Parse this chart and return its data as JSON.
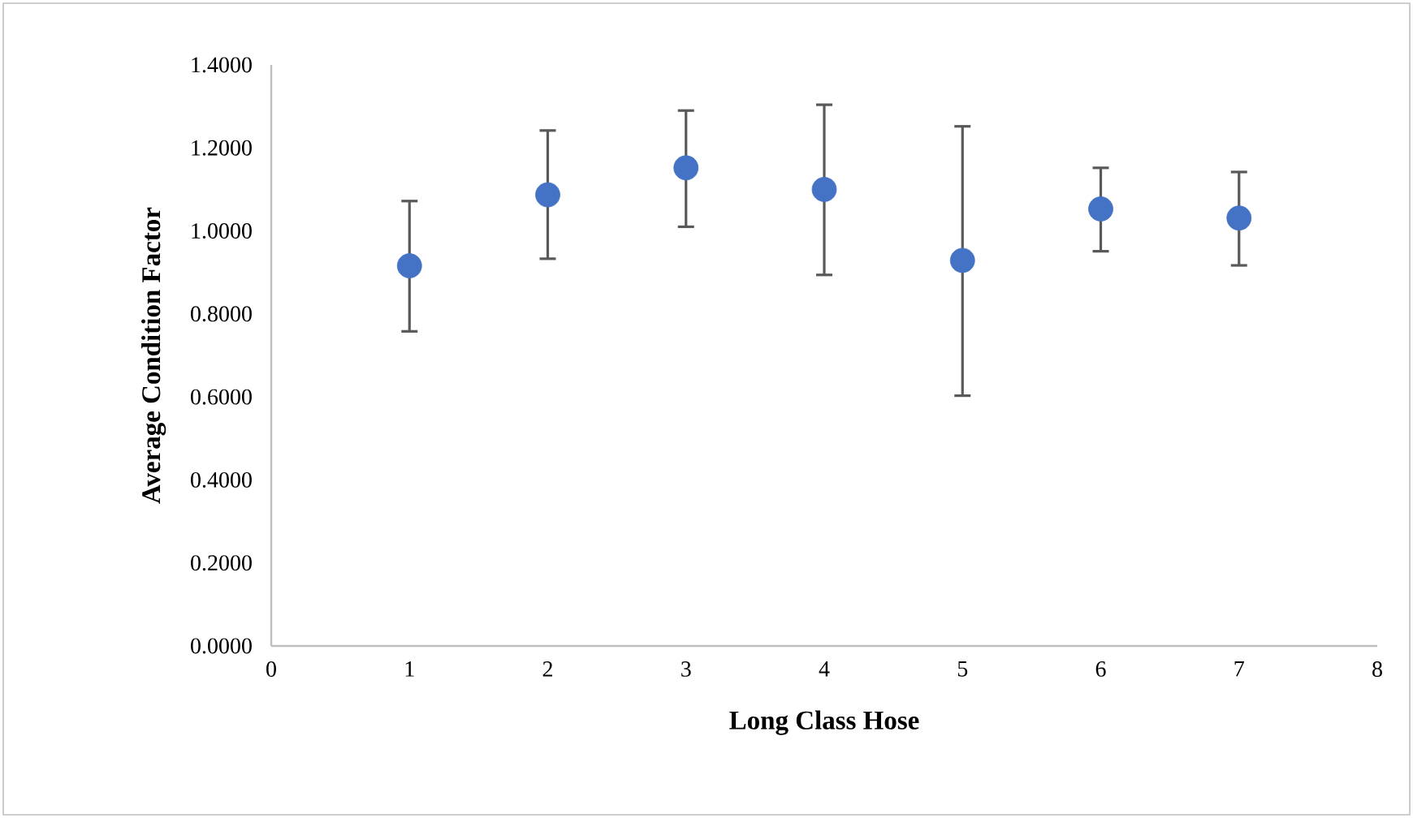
{
  "chart_data": {
    "type": "scatter",
    "xlabel": "Long Class Hose",
    "ylabel": "Average Condition Factor",
    "x": [
      1,
      2,
      3,
      4,
      5,
      6,
      7
    ],
    "values": [
      0.916,
      1.087,
      1.152,
      1.1,
      0.929,
      1.053,
      1.031
    ],
    "errors": [
      [
        0.758,
        1.072
      ],
      [
        0.933,
        1.242
      ],
      [
        1.01,
        1.29
      ],
      [
        0.894,
        1.304
      ],
      [
        0.603,
        1.252
      ],
      [
        0.951,
        1.152
      ],
      [
        0.917,
        1.142
      ]
    ],
    "color": "#4472c4",
    "marker": "circle",
    "xlim": [
      0,
      8
    ],
    "xticks": [
      0,
      1,
      2,
      3,
      4,
      5,
      6,
      7,
      8
    ],
    "ylim": [
      0,
      1.4
    ],
    "yticks": [
      {
        "value": 0,
        "label": "0.0000"
      },
      {
        "value": 0.2,
        "label": "0.2000"
      },
      {
        "value": 0.4,
        "label": "0.4000"
      },
      {
        "value": 0.6,
        "label": "0.6000"
      },
      {
        "value": 0.8,
        "label": "0.8000"
      },
      {
        "value": 1.0,
        "label": "1.0000"
      },
      {
        "value": 1.2,
        "label": "1.2000"
      },
      {
        "value": 1.4,
        "label": "1.4000"
      }
    ]
  }
}
